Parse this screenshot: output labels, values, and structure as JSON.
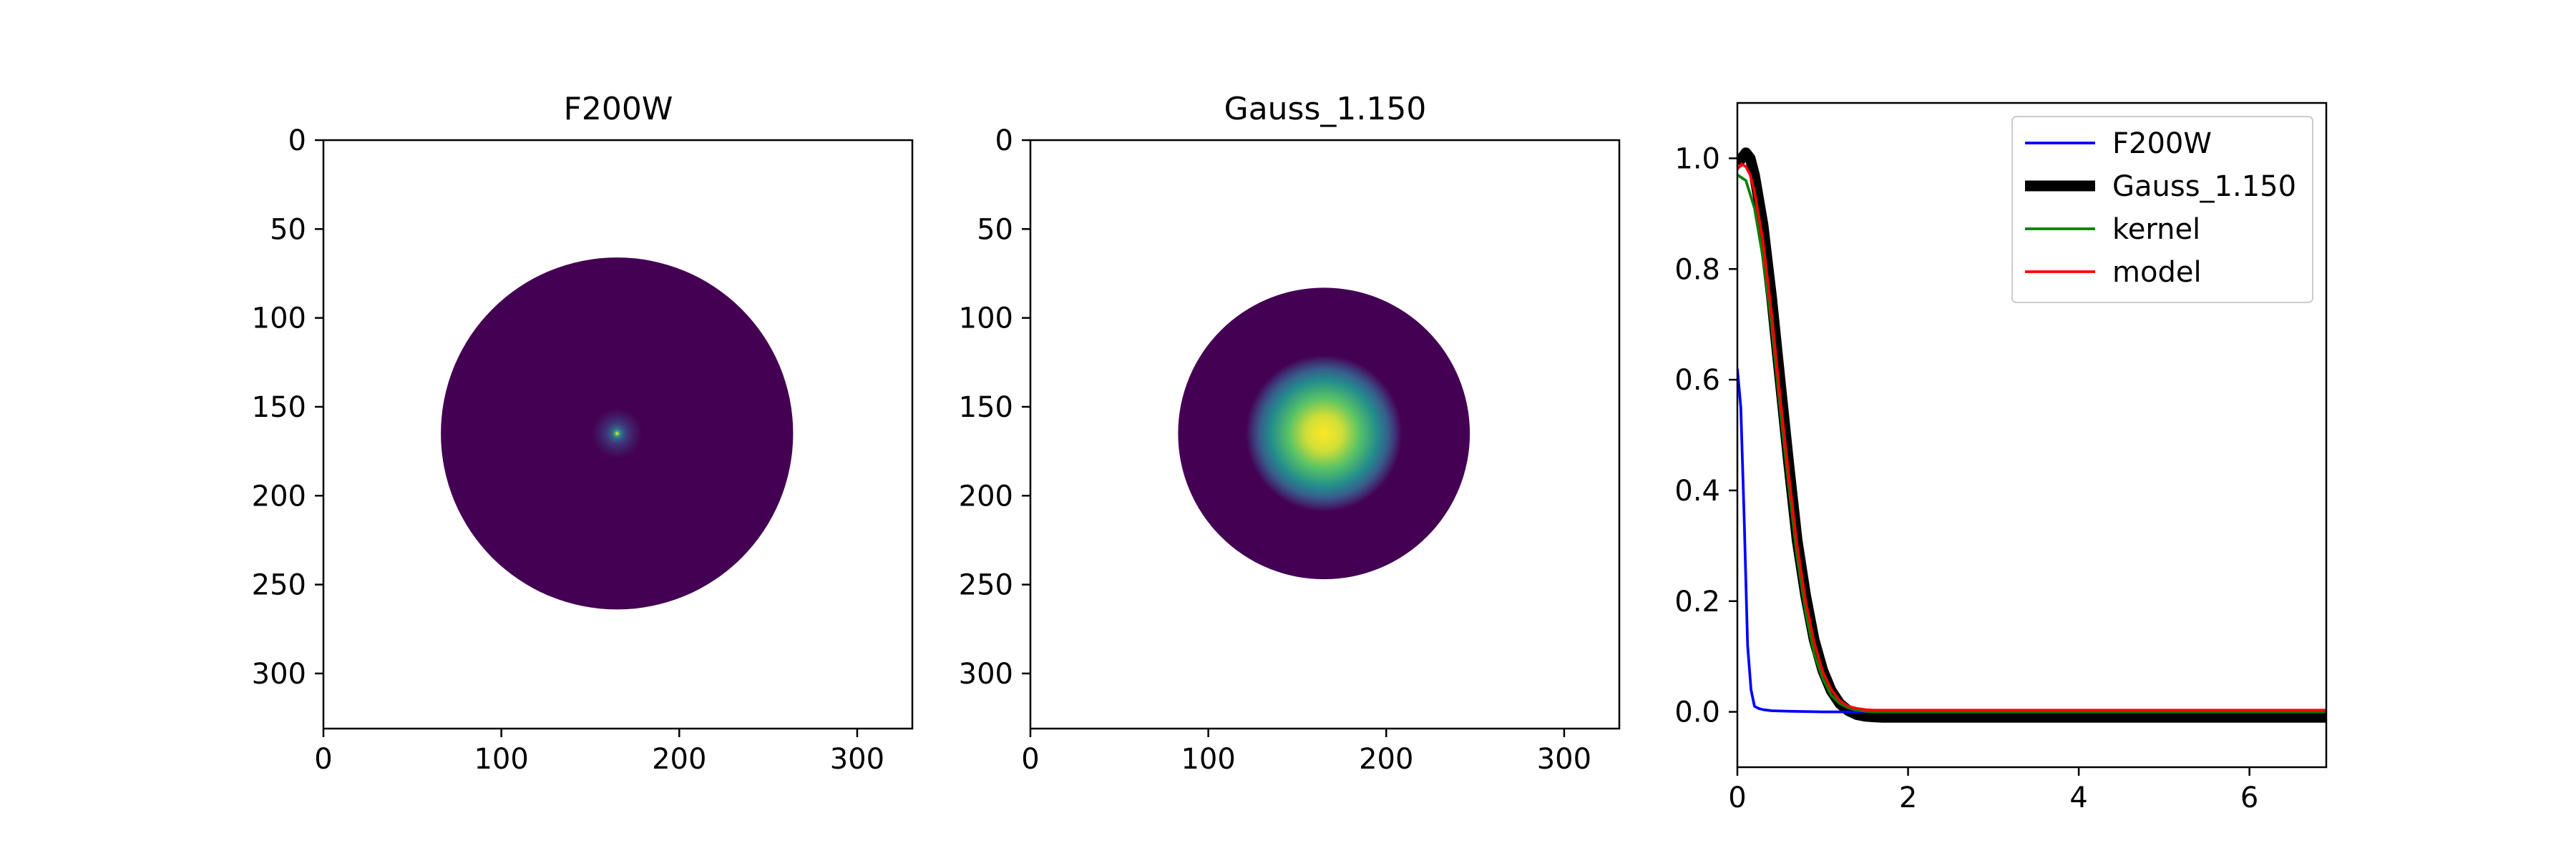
{
  "chart_data": [
    {
      "type": "heatmap",
      "title": "F200W",
      "xlim": [
        0,
        331
      ],
      "ylim": [
        331,
        0
      ],
      "xticks": [
        0,
        100,
        200,
        300
      ],
      "yticks": [
        0,
        50,
        100,
        150,
        200,
        250,
        300
      ],
      "colormap": "viridis",
      "image": {
        "center": [
          165,
          165
        ],
        "disk_radius": 99,
        "background_value": 0.0,
        "profile": [
          {
            "r": 0,
            "value": 1.0
          },
          {
            "r": 1.5,
            "value": 0.55
          },
          {
            "r": 3,
            "value": 0.3
          },
          {
            "r": 6,
            "value": 0.16
          },
          {
            "r": 10,
            "value": 0.07
          },
          {
            "r": 14,
            "value": 0.0
          }
        ]
      }
    },
    {
      "type": "heatmap",
      "title": "Gauss_1.150",
      "xlim": [
        0,
        331
      ],
      "ylim": [
        331,
        0
      ],
      "xticks": [
        0,
        100,
        200,
        300
      ],
      "yticks": [
        0,
        50,
        100,
        150,
        200,
        250,
        300
      ],
      "colormap": "viridis",
      "image": {
        "center": [
          165,
          165
        ],
        "disk_radius": 82,
        "background_value": 0.0,
        "profile": [
          {
            "r": 0,
            "value": 1.0
          },
          {
            "r": 10,
            "value": 0.93
          },
          {
            "r": 20,
            "value": 0.72
          },
          {
            "r": 30,
            "value": 0.48
          },
          {
            "r": 36,
            "value": 0.3
          },
          {
            "r": 40,
            "value": 0.15
          },
          {
            "r": 44,
            "value": 0.0
          }
        ]
      }
    },
    {
      "type": "line",
      "xlim": [
        0,
        6.9
      ],
      "ylim": [
        -0.1,
        1.1
      ],
      "xticks": [
        0,
        2,
        4,
        6
      ],
      "yticks": [
        0.0,
        0.2,
        0.4,
        0.6,
        0.8,
        1.0
      ],
      "legend_position": "top-right",
      "series": [
        {
          "name": "F200W",
          "color": "#0000ff",
          "width": 1.5,
          "x": [
            0.0,
            0.04,
            0.08,
            0.12,
            0.16,
            0.2,
            0.25,
            0.3,
            0.4,
            0.6,
            1.0,
            1.5,
            2.0,
            3.0,
            4.0,
            5.0,
            6.0,
            6.9
          ],
          "y": [
            0.62,
            0.55,
            0.35,
            0.12,
            0.04,
            0.01,
            0.006,
            0.004,
            0.002,
            0.001,
            0.0,
            0.0,
            0.0,
            0.0,
            0.0,
            0.0,
            0.0,
            0.0
          ]
        },
        {
          "name": "Gauss_1.150",
          "color": "#000000",
          "width": 6,
          "x": [
            0.0,
            0.05,
            0.1,
            0.15,
            0.2,
            0.3,
            0.4,
            0.5,
            0.6,
            0.7,
            0.8,
            0.9,
            1.0,
            1.1,
            1.2,
            1.3,
            1.4,
            1.5,
            1.6,
            1.7,
            1.8,
            2.0,
            2.5,
            3.0,
            4.0,
            5.0,
            6.0,
            6.9
          ],
          "y": [
            0.99,
            1.0,
            1.01,
            1.0,
            0.97,
            0.88,
            0.75,
            0.6,
            0.45,
            0.31,
            0.21,
            0.13,
            0.075,
            0.038,
            0.015,
            0.002,
            -0.005,
            -0.008,
            -0.009,
            -0.01,
            -0.01,
            -0.01,
            -0.01,
            -0.01,
            -0.01,
            -0.01,
            -0.01,
            -0.01
          ]
        },
        {
          "name": "kernel",
          "color": "#008000",
          "width": 1.5,
          "x": [
            0.0,
            0.1,
            0.2,
            0.3,
            0.4,
            0.5,
            0.6,
            0.7,
            0.8,
            0.9,
            1.0,
            1.1,
            1.2,
            1.3,
            1.4,
            1.5,
            1.6,
            1.8,
            2.0,
            3.0,
            4.0,
            5.0,
            6.0,
            6.9
          ],
          "y": [
            0.97,
            0.96,
            0.91,
            0.82,
            0.7,
            0.55,
            0.41,
            0.28,
            0.18,
            0.105,
            0.06,
            0.03,
            0.015,
            0.007,
            0.003,
            0.001,
            0.0,
            0.0,
            0.0,
            0.0,
            0.0,
            0.0,
            0.0,
            0.0
          ]
        },
        {
          "name": "model",
          "color": "#ff0000",
          "width": 1.5,
          "x": [
            0.0,
            0.05,
            0.1,
            0.15,
            0.2,
            0.3,
            0.4,
            0.5,
            0.6,
            0.7,
            0.8,
            0.9,
            1.0,
            1.1,
            1.2,
            1.3,
            1.4,
            1.5,
            1.6,
            1.8,
            2.0,
            3.0,
            4.0,
            5.0,
            6.0,
            6.9
          ],
          "y": [
            0.98,
            0.99,
            0.985,
            0.97,
            0.94,
            0.85,
            0.72,
            0.57,
            0.43,
            0.3,
            0.2,
            0.125,
            0.072,
            0.04,
            0.02,
            0.01,
            0.006,
            0.004,
            0.003,
            0.003,
            0.003,
            0.003,
            0.003,
            0.003,
            0.003,
            0.003
          ]
        }
      ]
    }
  ]
}
